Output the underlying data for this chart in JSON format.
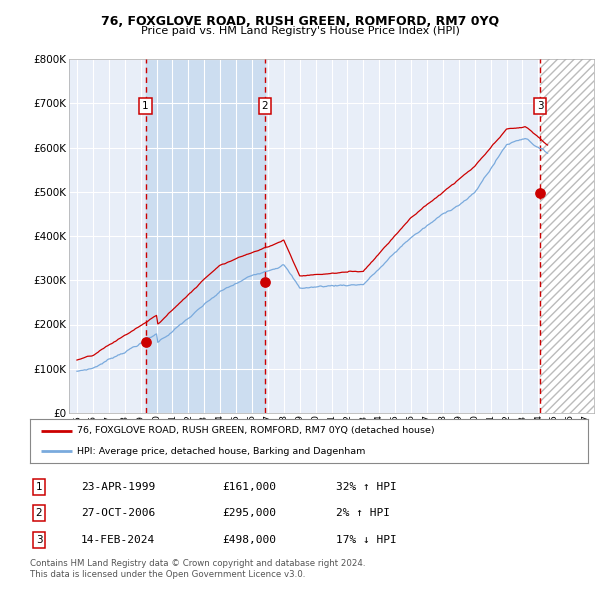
{
  "title1": "76, FOXGLOVE ROAD, RUSH GREEN, ROMFORD, RM7 0YQ",
  "title2": "Price paid vs. HM Land Registry's House Price Index (HPI)",
  "ylim": [
    0,
    800000
  ],
  "yticks": [
    0,
    100000,
    200000,
    300000,
    400000,
    500000,
    600000,
    700000,
    800000
  ],
  "ytick_labels": [
    "£0",
    "£100K",
    "£200K",
    "£300K",
    "£400K",
    "£500K",
    "£600K",
    "£700K",
    "£800K"
  ],
  "xlim_start": 1994.5,
  "xlim_end": 2027.5,
  "xtick_years": [
    1995,
    1996,
    1997,
    1998,
    1999,
    2000,
    2001,
    2002,
    2003,
    2004,
    2005,
    2006,
    2007,
    2008,
    2009,
    2010,
    2011,
    2012,
    2013,
    2014,
    2015,
    2016,
    2017,
    2018,
    2019,
    2020,
    2021,
    2022,
    2023,
    2024,
    2025,
    2026,
    2027
  ],
  "sale_dates": [
    1999.31,
    2006.82,
    2024.12
  ],
  "sale_prices": [
    161000,
    295000,
    498000
  ],
  "sale_labels": [
    "1",
    "2",
    "3"
  ],
  "legend_line1": "76, FOXGLOVE ROAD, RUSH GREEN, ROMFORD, RM7 0YQ (detached house)",
  "legend_line2": "HPI: Average price, detached house, Barking and Dagenham",
  "table_rows": [
    [
      "1",
      "23-APR-1999",
      "£161,000",
      "32% ↑ HPI"
    ],
    [
      "2",
      "27-OCT-2006",
      "£295,000",
      "2% ↑ HPI"
    ],
    [
      "3",
      "14-FEB-2024",
      "£498,000",
      "17% ↓ HPI"
    ]
  ],
  "footnote1": "Contains HM Land Registry data © Crown copyright and database right 2024.",
  "footnote2": "This data is licensed under the Open Government Licence v3.0.",
  "red_color": "#cc0000",
  "blue_color": "#7aaadd",
  "bg_color": "#ffffff",
  "plot_bg": "#e8eef8",
  "grid_color": "#ffffff",
  "shade_color": "#ccddf0",
  "dashed_red": "#cc0000"
}
